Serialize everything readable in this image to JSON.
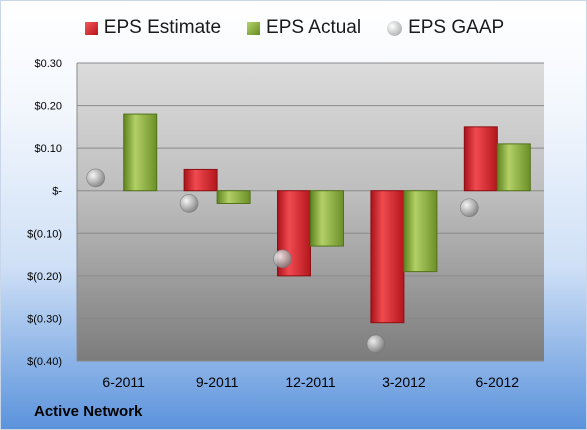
{
  "chart_data": {
    "type": "bar",
    "categories": [
      "6-2011",
      "9-2011",
      "12-2011",
      "3-2012",
      "6-2012"
    ],
    "series": [
      {
        "name": "EPS Estimate",
        "kind": "bar",
        "color": "#d0262b",
        "values": [
          null,
          0.05,
          -0.2,
          -0.31,
          0.15
        ]
      },
      {
        "name": "EPS Actual",
        "kind": "bar",
        "color": "#8fb33f",
        "values": [
          0.18,
          -0.03,
          -0.13,
          -0.19,
          0.11
        ]
      },
      {
        "name": "EPS GAAP",
        "kind": "marker",
        "color": "#b0b0b0",
        "values": [
          0.03,
          -0.03,
          -0.16,
          -0.36,
          -0.04
        ]
      }
    ],
    "yticks": [
      {
        "value": 0.3,
        "label": "$0.30"
      },
      {
        "value": 0.2,
        "label": "$0.20"
      },
      {
        "value": 0.1,
        "label": "$0.10"
      },
      {
        "value": 0.0,
        "label": "$-"
      },
      {
        "value": -0.1,
        "label": "$(0.10)"
      },
      {
        "value": -0.2,
        "label": "$(0.20)"
      },
      {
        "value": -0.3,
        "label": "$(0.30)"
      },
      {
        "value": -0.4,
        "label": "$(0.40)"
      }
    ],
    "ylim": [
      -0.4,
      0.3
    ],
    "grid": true,
    "legend_position": "top-center",
    "footer": "Active Network"
  }
}
